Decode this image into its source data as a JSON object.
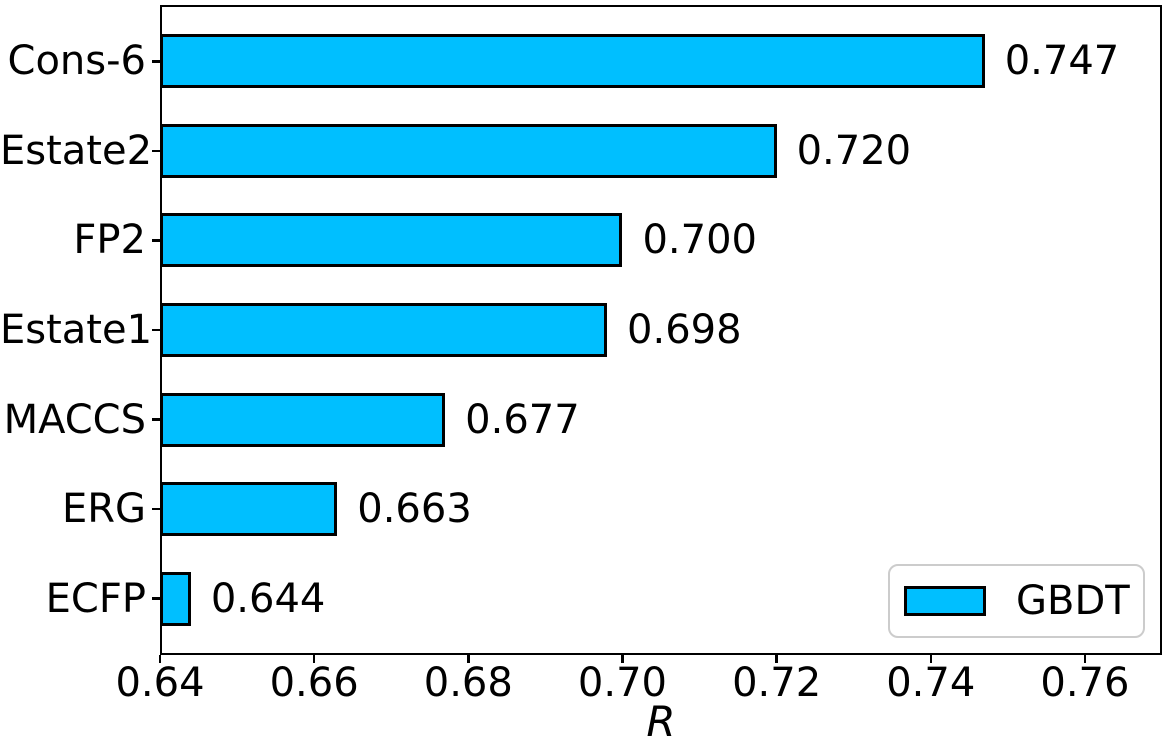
{
  "chart_data": {
    "type": "bar",
    "orientation": "horizontal",
    "title": "",
    "xlabel": "R",
    "ylabel": "",
    "categories": [
      "Cons-6",
      "Estate2",
      "FP2",
      "Estate1",
      "MACCS",
      "ERG",
      "ECFP"
    ],
    "series": [
      {
        "name": "GBDT",
        "values": [
          0.747,
          0.72,
          0.7,
          0.698,
          0.677,
          0.663,
          0.644
        ]
      }
    ],
    "bar_value_labels": [
      "0.747",
      "0.720",
      "0.700",
      "0.698",
      "0.677",
      "0.663",
      "0.644"
    ],
    "xlim": [
      0.64,
      0.77
    ],
    "xticks": [
      0.64,
      0.66,
      0.68,
      0.7,
      0.72,
      0.74,
      0.76
    ],
    "xtick_labels": [
      "0.64",
      "0.66",
      "0.68",
      "0.70",
      "0.72",
      "0.74",
      "0.76"
    ],
    "grid": false,
    "legend": {
      "position": "lower right",
      "entries": [
        {
          "label": "GBDT",
          "swatch_fill": "#00BFFF",
          "swatch_edge": "#000000"
        }
      ]
    },
    "colors": {
      "bar_fill": "#00BFFF",
      "bar_edge": "#000000",
      "axis": "#000000",
      "text": "#000000",
      "legend_edge": "#cccccc",
      "background": "#ffffff"
    }
  }
}
